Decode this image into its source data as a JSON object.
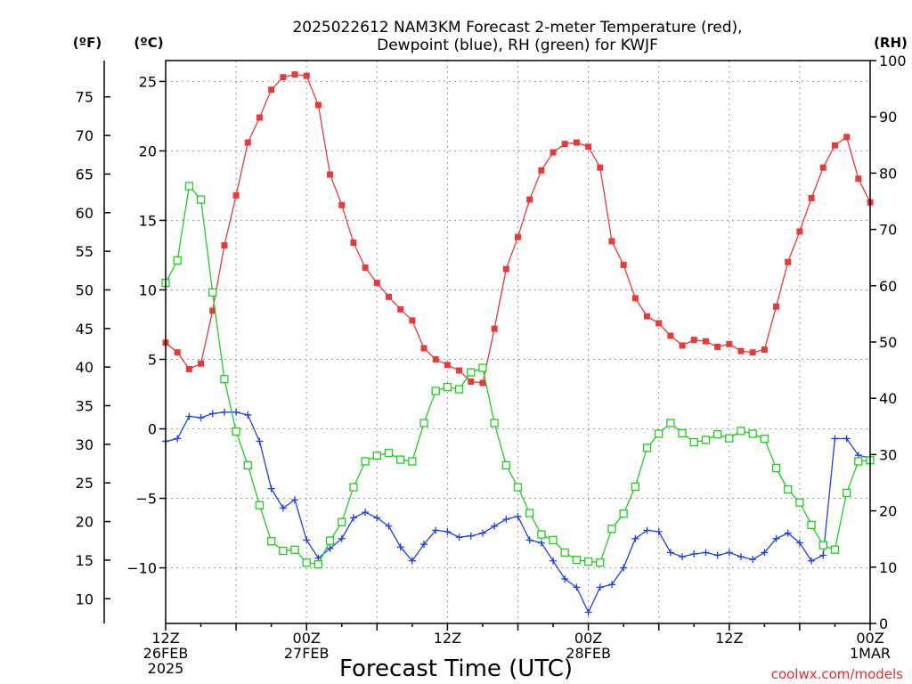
{
  "chart_data": {
    "type": "line",
    "title_line1": "2025022612 NAM3KM Forecast 2-meter Temperature (red),",
    "title_line2": "Dewpoint (blue), RH (green) for KWJF",
    "xlabel": "Forecast Time (UTC)",
    "credit": "coolwx.com/models",
    "units": {
      "fahrenheit": "(ºF)",
      "celsius": "(ºC)",
      "rh": "(RH)"
    },
    "x_range_hours": [
      0,
      60
    ],
    "c_range": [
      -14,
      26.5
    ],
    "rh_range": [
      0,
      100
    ],
    "x_ticks": [
      {
        "h": 0,
        "l1": "12Z",
        "l2": "26FEB",
        "l3": "2025"
      },
      {
        "h": 12,
        "l1": "00Z",
        "l2": "27FEB",
        "l3": ""
      },
      {
        "h": 24,
        "l1": "12Z",
        "l2": "",
        "l3": ""
      },
      {
        "h": 36,
        "l1": "00Z",
        "l2": "28FEB",
        "l3": ""
      },
      {
        "h": 48,
        "l1": "12Z",
        "l2": "",
        "l3": ""
      },
      {
        "h": 60,
        "l1": "00Z",
        "l2": "1MAR",
        "l3": ""
      }
    ],
    "c_ticks": [
      "25",
      "20",
      "15",
      "10",
      "5",
      "0",
      "−5",
      "−10"
    ],
    "c_tick_values": [
      25,
      20,
      15,
      10,
      5,
      0,
      -5,
      -10
    ],
    "f_ticks": [
      "75",
      "70",
      "65",
      "60",
      "55",
      "50",
      "45",
      "40",
      "35",
      "30",
      "25",
      "20",
      "15",
      "10"
    ],
    "f_tick_values": [
      75,
      70,
      65,
      60,
      55,
      50,
      45,
      40,
      35,
      30,
      25,
      20,
      15,
      10
    ],
    "rh_ticks": [
      "100",
      "90",
      "80",
      "70",
      "60",
      "50",
      "40",
      "30",
      "20",
      "10",
      "0"
    ],
    "rh_tick_values": [
      100,
      90,
      80,
      70,
      60,
      50,
      40,
      30,
      20,
      10,
      0
    ],
    "series": [
      {
        "name": "Temperature",
        "color": "#e83a3a",
        "marker": "filled-square",
        "units": "C",
        "values": [
          6.2,
          5.5,
          4.3,
          4.7,
          8.5,
          13.2,
          16.8,
          20.6,
          22.4,
          24.4,
          25.3,
          25.5,
          25.4,
          23.3,
          18.3,
          16.1,
          13.4,
          11.6,
          10.5,
          9.5,
          8.6,
          7.8,
          5.8,
          5.0,
          4.6,
          4.2,
          3.4,
          3.3,
          7.2,
          11.5,
          13.8,
          16.5,
          18.6,
          19.9,
          20.5,
          20.6,
          20.3,
          18.8,
          13.5,
          11.8,
          9.4,
          8.1,
          7.6,
          6.7,
          6.0,
          6.4,
          6.3,
          5.9,
          6.1,
          5.6,
          5.5,
          5.7,
          8.8,
          12.0,
          14.2,
          16.6,
          18.8,
          20.4,
          21.0,
          18.0,
          16.3
        ]
      },
      {
        "name": "Dewpoint",
        "color": "#2040e8",
        "marker": "plus",
        "units": "C",
        "values": [
          -0.9,
          -0.7,
          0.9,
          0.8,
          1.1,
          1.2,
          1.2,
          1.0,
          -0.9,
          -4.3,
          -5.7,
          -5.1,
          -8.0,
          -9.3,
          -8.6,
          -7.9,
          -6.4,
          -6.0,
          -6.4,
          -7.0,
          -8.5,
          -9.5,
          -8.3,
          -7.3,
          -7.4,
          -7.8,
          -7.7,
          -7.5,
          -7.0,
          -6.5,
          -6.3,
          -8.0,
          -8.2,
          -9.5,
          -10.8,
          -11.4,
          -13.2,
          -11.4,
          -11.2,
          -10.0,
          -7.9,
          -7.3,
          -7.4,
          -8.9,
          -9.2,
          -9.0,
          -8.9,
          -9.1,
          -8.9,
          -9.2,
          -9.4,
          -8.9,
          -7.9,
          -7.5,
          -8.2,
          -9.5,
          -9.1,
          -0.7,
          -0.7,
          -1.9,
          -2.1
        ]
      },
      {
        "name": "RH",
        "color": "#22cc22",
        "marker": "open-square",
        "units": "%",
        "values": [
          60.5,
          64.5,
          77.7,
          75.3,
          58.8,
          43.4,
          34.1,
          28.1,
          21.0,
          14.6,
          12.9,
          13.1,
          10.8,
          10.5,
          14.7,
          18.0,
          24.2,
          28.8,
          29.8,
          30.3,
          29.1,
          28.8,
          35.6,
          41.3,
          42.0,
          41.6,
          44.6,
          45.4,
          35.6,
          28.1,
          24.2,
          19.6,
          15.8,
          14.8,
          12.6,
          11.3,
          11.0,
          10.8,
          16.8,
          19.5,
          24.3,
          31.2,
          33.7,
          35.6,
          33.8,
          32.2,
          32.6,
          33.6,
          32.9,
          34.2,
          33.7,
          32.8,
          27.6,
          23.8,
          21.5,
          17.5,
          13.9,
          13.1,
          23.2,
          28.8,
          29.0
        ]
      }
    ],
    "grid": true,
    "legend": "none"
  }
}
